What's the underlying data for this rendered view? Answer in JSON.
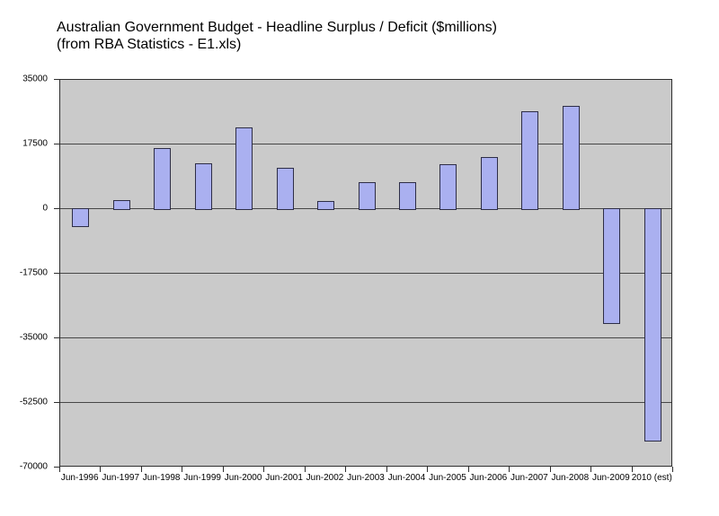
{
  "page": {
    "background": "#ffffff"
  },
  "title": {
    "line1": "Australian Government Budget - Headline Surplus / Deficit ($millions)",
    "line2": "(from RBA Statistics - E1.xls)"
  },
  "chart_data": {
    "type": "bar",
    "title": "Australian Government Budget - Headline Surplus / Deficit ($millions)",
    "subtitle": "(from RBA Statistics - E1.xls)",
    "categories": [
      "Jun-1996",
      "Jun-1997",
      "Jun-1998",
      "Jun-1999",
      "Jun-2000",
      "Jun-2001",
      "Jun-2002",
      "Jun-2003",
      "Jun-2004",
      "Jun-2005",
      "Jun-2006",
      "Jun-2007",
      "Jun-2008",
      "Jun-2009",
      "2010 (est)"
    ],
    "values": [
      -4900,
      2400,
      16600,
      12500,
      22000,
      11100,
      2100,
      7200,
      7400,
      12200,
      14000,
      26500,
      28000,
      -31000,
      -63000
    ],
    "xlabel": "",
    "ylabel": "",
    "ylim": [
      -70000,
      35000
    ],
    "ytick_step": 17500,
    "ytick_labels": [
      "35000",
      "17500",
      "0",
      "-17500",
      "-35000",
      "-52500",
      "-70000"
    ],
    "grid": true,
    "legend": false,
    "colors": {
      "plot_bg": "#cacaca",
      "bar_fill": "#aab0f0",
      "bar_border": "#2d2d46",
      "grid_line": "#464646",
      "axis_line": "#2e2e2e",
      "text": "#000000",
      "page_bg": "#ffffff"
    }
  }
}
